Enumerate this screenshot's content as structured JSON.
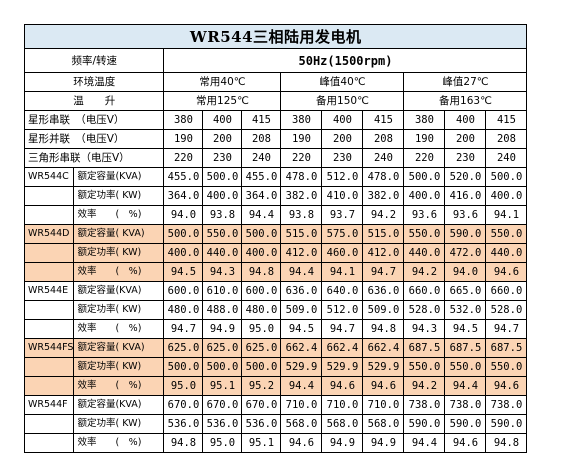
{
  "title": "WR544三相陆用发电机",
  "freq_label": "频率/转速",
  "freq_value": "50Hz(1500rpm)",
  "env_label": "环境温度",
  "env_values": [
    "常用40℃",
    "峰值40℃",
    "峰值27℃"
  ],
  "temp_label": "温　　升",
  "temp_values": [
    "常用125℃",
    "备用150℃",
    "备用163℃"
  ],
  "voltage_rows": [
    {
      "label": "星形串联　（电压V）",
      "values": [
        "380",
        "400",
        "415",
        "380",
        "400",
        "415",
        "380",
        "400",
        "415"
      ]
    },
    {
      "label": "星形并联　（电压V）",
      "values": [
        "190",
        "200",
        "208",
        "190",
        "200",
        "208",
        "190",
        "200",
        "208"
      ]
    },
    {
      "label": "三角形串联（电压V）",
      "values": [
        "220",
        "230",
        "240",
        "220",
        "230",
        "240",
        "220",
        "230",
        "240"
      ]
    }
  ],
  "models": [
    {
      "model": "WR544C",
      "highlight": false,
      "rows": [
        {
          "label": "额定容量(KVA)",
          "values": [
            "455.0",
            "500.0",
            "455.0",
            "478.0",
            "512.0",
            "478.0",
            "500.0",
            "520.0",
            "500.0"
          ]
        },
        {
          "label": "额定功率( KW)",
          "values": [
            "364.0",
            "400.0",
            "364.0",
            "382.0",
            "410.0",
            "382.0",
            "400.0",
            "416.0",
            "400.0"
          ]
        },
        {
          "label": "效率　　(　%)",
          "values": [
            "94.0",
            "93.8",
            "94.4",
            "93.8",
            "93.7",
            "94.2",
            "93.6",
            "93.6",
            "94.1"
          ]
        }
      ]
    },
    {
      "model": "WR544D",
      "highlight": true,
      "rows": [
        {
          "label": "额定容量( KVA)",
          "values": [
            "500.0",
            "550.0",
            "500.0",
            "515.0",
            "575.0",
            "515.0",
            "550.0",
            "590.0",
            "550.0"
          ]
        },
        {
          "label": "额定功率( KW)",
          "values": [
            "400.0",
            "440.0",
            "400.0",
            "412.0",
            "460.0",
            "412.0",
            "440.0",
            "472.0",
            "440.0"
          ]
        },
        {
          "label": "效率　　(　%)",
          "values": [
            "94.5",
            "94.3",
            "94.8",
            "94.4",
            "94.1",
            "94.7",
            "94.2",
            "94.0",
            "94.6"
          ]
        }
      ]
    },
    {
      "model": "WR544E",
      "highlight": false,
      "rows": [
        {
          "label": "额定容量(KVA)",
          "values": [
            "600.0",
            "610.0",
            "600.0",
            "636.0",
            "640.0",
            "636.0",
            "660.0",
            "665.0",
            "660.0"
          ]
        },
        {
          "label": "额定功率( KW)",
          "values": [
            "480.0",
            "488.0",
            "480.0",
            "509.0",
            "512.0",
            "509.0",
            "528.0",
            "532.0",
            "528.0"
          ]
        },
        {
          "label": "效率　　(　%)",
          "values": [
            "94.7",
            "94.9",
            "95.0",
            "94.5",
            "94.7",
            "94.8",
            "94.3",
            "94.5",
            "94.7"
          ]
        }
      ]
    },
    {
      "model": "WR544FS",
      "highlight": true,
      "rows": [
        {
          "label": "额定容量( KVA)",
          "values": [
            "625.0",
            "625.0",
            "625.0",
            "662.4",
            "662.4",
            "662.4",
            "687.5",
            "687.5",
            "687.5"
          ]
        },
        {
          "label": "额定功率( KW)",
          "values": [
            "500.0",
            "500.0",
            "500.0",
            "529.9",
            "529.9",
            "529.9",
            "550.0",
            "550.0",
            "550.0"
          ]
        },
        {
          "label": "效率　　(　%)",
          "values": [
            "95.0",
            "95.1",
            "95.2",
            "94.4",
            "94.6",
            "94.6",
            "94.2",
            "94.4",
            "94.6"
          ]
        }
      ]
    },
    {
      "model": "WR544F",
      "highlight": false,
      "rows": [
        {
          "label": "额定容量(KVA)",
          "values": [
            "670.0",
            "670.0",
            "670.0",
            "710.0",
            "710.0",
            "710.0",
            "738.0",
            "738.0",
            "738.0"
          ]
        },
        {
          "label": "额定功率( KW)",
          "values": [
            "536.0",
            "536.0",
            "536.0",
            "568.0",
            "568.0",
            "568.0",
            "590.0",
            "590.0",
            "590.0"
          ]
        },
        {
          "label": "效率　　(　%)",
          "values": [
            "94.8",
            "95.0",
            "95.1",
            "94.6",
            "94.9",
            "94.9",
            "94.4",
            "94.6",
            "94.8"
          ]
        }
      ]
    }
  ]
}
